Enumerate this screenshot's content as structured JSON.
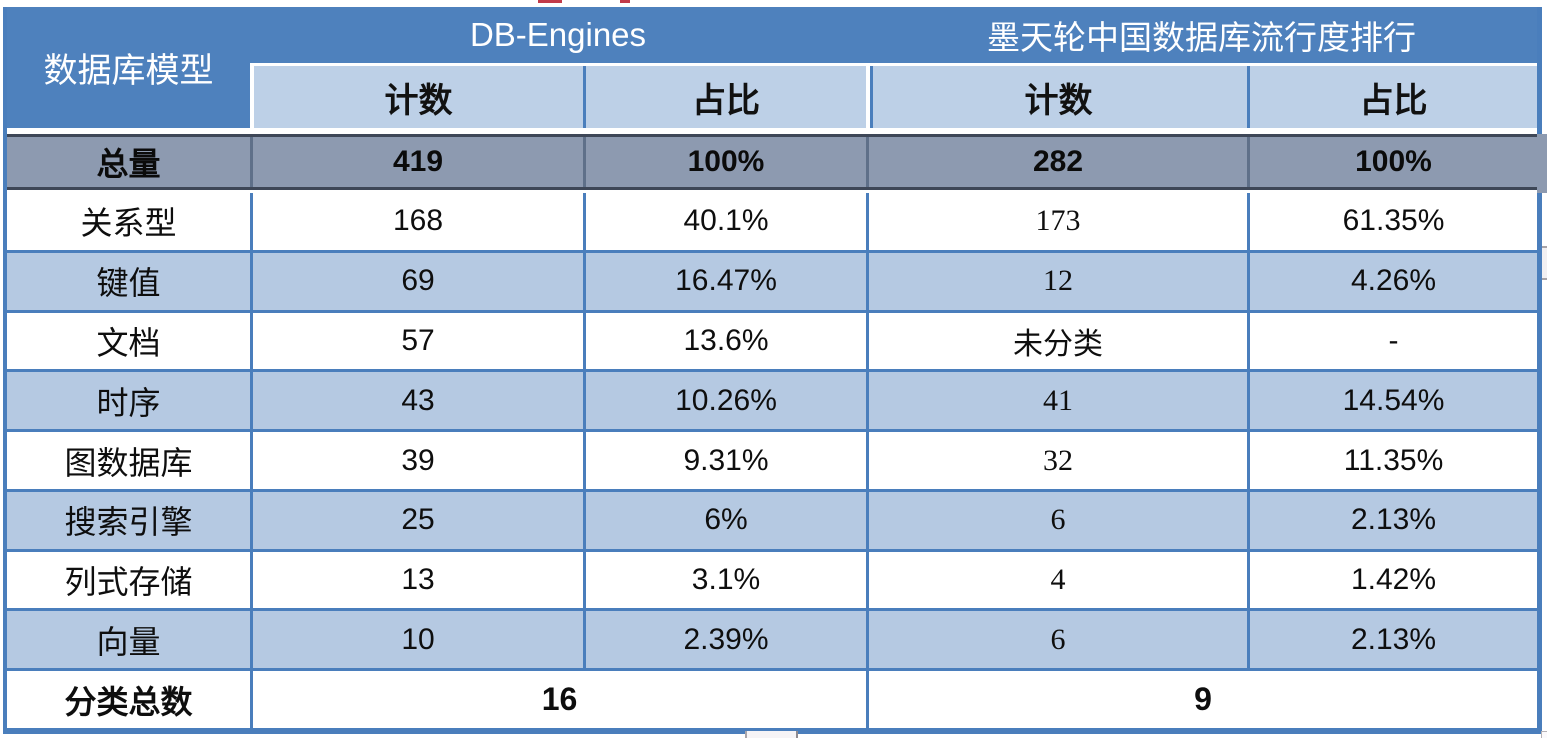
{
  "table": {
    "corner_header": "数据库模型",
    "group_headers": {
      "db_engines": "DB-Engines",
      "modb": "墨天轮中国数据库流行度排行"
    },
    "sub_headers": {
      "dbe_count": "计数",
      "dbe_share": "占比",
      "modb_count": "计数",
      "modb_share": "占比"
    },
    "total_row": {
      "label": "总量",
      "dbe_count": "419",
      "dbe_share": "100%",
      "modb_count": "282",
      "modb_share": "100%"
    },
    "rows": [
      {
        "label": "关系型",
        "dbe_count": "168",
        "dbe_share": "40.1%",
        "modb_count": "173",
        "modb_share": "61.35%"
      },
      {
        "label": "键值",
        "dbe_count": "69",
        "dbe_share": "16.47%",
        "modb_count": "12",
        "modb_share": "4.26%"
      },
      {
        "label": "文档",
        "dbe_count": "57",
        "dbe_share": "13.6%",
        "modb_count": "未分类",
        "modb_share": "-"
      },
      {
        "label": "时序",
        "dbe_count": "43",
        "dbe_share": "10.26%",
        "modb_count": "41",
        "modb_share": "14.54%"
      },
      {
        "label": "图数据库",
        "dbe_count": "39",
        "dbe_share": "9.31%",
        "modb_count": "32",
        "modb_share": "11.35%"
      },
      {
        "label": "搜索引擎",
        "dbe_count": "25",
        "dbe_share": "6%",
        "modb_count": "6",
        "modb_share": "2.13%"
      },
      {
        "label": "列式存储",
        "dbe_count": "13",
        "dbe_share": "3.1%",
        "modb_count": "4",
        "modb_share": "1.42%"
      },
      {
        "label": "向量",
        "dbe_count": "10",
        "dbe_share": "2.39%",
        "modb_count": "6",
        "modb_share": "2.13%"
      }
    ],
    "summary_row": {
      "label": "分类总数",
      "dbe_total": "16",
      "modb_total": "9"
    }
  },
  "chart_data": {
    "type": "table",
    "title": "数据库模型 — DB-Engines vs 墨天轮中国数据库流行度排行",
    "categories": [
      "总量",
      "关系型",
      "键值",
      "文档",
      "时序",
      "图数据库",
      "搜索引擎",
      "列式存储",
      "向量"
    ],
    "series": [
      {
        "name": "DB-Engines 计数",
        "values": [
          "419",
          "168",
          "69",
          "57",
          "43",
          "39",
          "25",
          "13",
          "10"
        ]
      },
      {
        "name": "DB-Engines 占比",
        "values": [
          "100%",
          "40.1%",
          "16.47%",
          "13.6%",
          "10.26%",
          "9.31%",
          "6%",
          "3.1%",
          "2.39%"
        ]
      },
      {
        "name": "墨天轮 计数",
        "values": [
          "282",
          "173",
          "12",
          "未分类",
          "41",
          "32",
          "6",
          "4",
          "6"
        ]
      },
      {
        "name": "墨天轮 占比",
        "values": [
          "100%",
          "61.35%",
          "4.26%",
          "-",
          "14.54%",
          "11.35%",
          "2.13%",
          "1.42%",
          "2.13%"
        ]
      }
    ],
    "footer": {
      "label": "分类总数",
      "db_engines": "16",
      "modb": "9"
    }
  },
  "colors": {
    "header_blue": "#4e81bd",
    "subheader_blue": "#bdd0e7",
    "row_alt_blue": "#b5c9e2",
    "total_row_gray": "#8d9ab0",
    "border_blue": "#4a7ebc",
    "dark_border": "#3e4757",
    "header_text": "#ffffff",
    "body_text": "#0e0e0e",
    "artifact_red": "#c23b4a"
  }
}
